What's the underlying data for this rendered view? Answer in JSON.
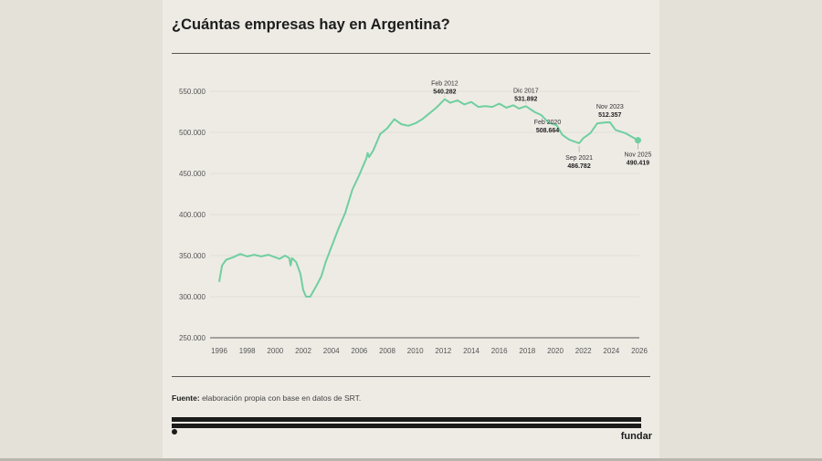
{
  "title": "¿Cuántas empresas hay en Argentina?",
  "source_label": "Fuente:",
  "source_text": " elaboración propia con base en datos de SRT.",
  "brand": "fundar",
  "chart_data": {
    "type": "line",
    "title": "¿Cuántas empresas hay en Argentina?",
    "xlabel": "",
    "ylabel": "",
    "xlim": [
      1996,
      2026
    ],
    "ylim": [
      250000,
      550000
    ],
    "grid": true,
    "line_color": "#6fcf9f",
    "x_ticks": [
      "1996",
      "1998",
      "2000",
      "2002",
      "2004",
      "2006",
      "2008",
      "2010",
      "2012",
      "2014",
      "2016",
      "2018",
      "2020",
      "2022",
      "2024",
      "2026"
    ],
    "y_ticks": [
      "250.000",
      "300.000",
      "350.000",
      "400.000",
      "450.000",
      "500.000",
      "550.000"
    ],
    "y_tick_values": [
      250000,
      300000,
      350000,
      400000,
      450000,
      500000,
      550000
    ],
    "x": [
      1996.0,
      1996.2,
      1996.5,
      1997,
      1997.5,
      1998,
      1998.5,
      1999,
      1999.5,
      2000,
      2000.3,
      2000.7,
      2001,
      2001.1,
      2001.2,
      2001.5,
      2001.8,
      2002,
      2002.2,
      2002.5,
      2003,
      2003.3,
      2003.6,
      2004,
      2004.5,
      2005,
      2005.5,
      2006,
      2006.5,
      2006.6,
      2006.7,
      2007,
      2007.5,
      2008,
      2008.5,
      2009,
      2009.5,
      2010,
      2010.5,
      2011,
      2011.5,
      2012.1,
      2012.5,
      2013,
      2013.5,
      2014,
      2014.5,
      2015,
      2015.5,
      2016,
      2016.5,
      2017,
      2017.4,
      2017.9,
      2018.5,
      2019,
      2019.5,
      2020.1,
      2020.5,
      2021,
      2021.7,
      2022,
      2022.5,
      2023,
      2023.5,
      2023.9,
      2024.3,
      2025,
      2025.9
    ],
    "y": [
      318000,
      338000,
      345000,
      348000,
      352000,
      349000,
      351000,
      349000,
      351000,
      348000,
      346000,
      350000,
      347000,
      338000,
      347000,
      342000,
      328000,
      308000,
      300000,
      300000,
      315000,
      325000,
      342000,
      360000,
      382000,
      402000,
      430000,
      448000,
      468000,
      475000,
      470000,
      478000,
      498000,
      505000,
      516000,
      510000,
      508000,
      511000,
      516000,
      523000,
      530000,
      540282,
      536000,
      539000,
      534000,
      537000,
      531000,
      532000,
      531000,
      535000,
      530000,
      533000,
      529000,
      531892,
      525000,
      521000,
      512000,
      508664,
      497000,
      491000,
      486782,
      493000,
      499000,
      511000,
      512000,
      512357,
      503000,
      499000,
      490419
    ],
    "annotations": [
      {
        "x": 2012.1,
        "label": "Feb 2012",
        "value": "540.282",
        "pos": "above"
      },
      {
        "x": 2017.9,
        "label": "Dic 2017",
        "value": "531.892",
        "pos": "above"
      },
      {
        "x": 2020.1,
        "label": "Feb 2020",
        "value": "508.664",
        "pos": "below-left"
      },
      {
        "x": 2021.7,
        "label": "Sep 2021",
        "value": "486.782",
        "pos": "below"
      },
      {
        "x": 2023.9,
        "label": "Nov 2023",
        "value": "512.357",
        "pos": "above"
      },
      {
        "x": 2025.9,
        "label": "Nov 2025",
        "value": "490.419",
        "pos": "below"
      }
    ]
  }
}
